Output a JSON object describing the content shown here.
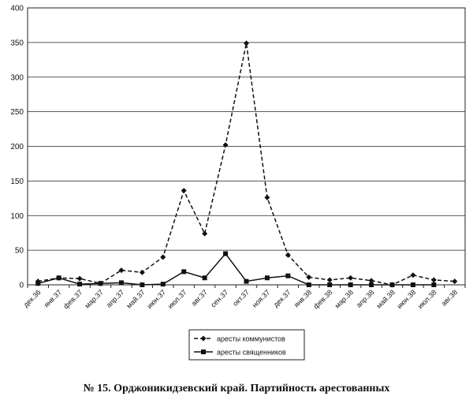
{
  "chart_data": {
    "type": "line",
    "categories": [
      "дек.36",
      "янв.37",
      "фев.37",
      "мар.37",
      "апр.37",
      "май.37",
      "июн.37",
      "июл.37",
      "авг.37",
      "сен.37",
      "окт.37",
      "ноя.37",
      "дек.37",
      "янв.38",
      "фев.38",
      "мар.38",
      "апр.38",
      "май.38",
      "июн.38",
      "июл.38",
      "авг.38"
    ],
    "series": [
      {
        "name": "аресты коммунистов",
        "color": "#111111",
        "line_style": "dashed",
        "marker": "diamond",
        "values": [
          5,
          10,
          9,
          2,
          21,
          18,
          40,
          136,
          74,
          202,
          349,
          126,
          43,
          11,
          7,
          10,
          6,
          0,
          14,
          7,
          5
        ]
      },
      {
        "name": "аресты священников",
        "color": "#111111",
        "line_style": "solid",
        "marker": "square",
        "values": [
          2,
          10,
          1,
          2,
          3,
          0,
          1,
          19,
          10,
          45,
          5,
          10,
          13,
          0,
          0,
          0,
          0,
          0,
          0,
          0,
          null
        ]
      }
    ],
    "ylim": [
      0,
      400
    ],
    "yticks": [
      0,
      50,
      100,
      150,
      200,
      250,
      300,
      350,
      400
    ],
    "grid": true,
    "caption": "№ 15. Орджоникидзевский край. Партийность арестованных"
  }
}
